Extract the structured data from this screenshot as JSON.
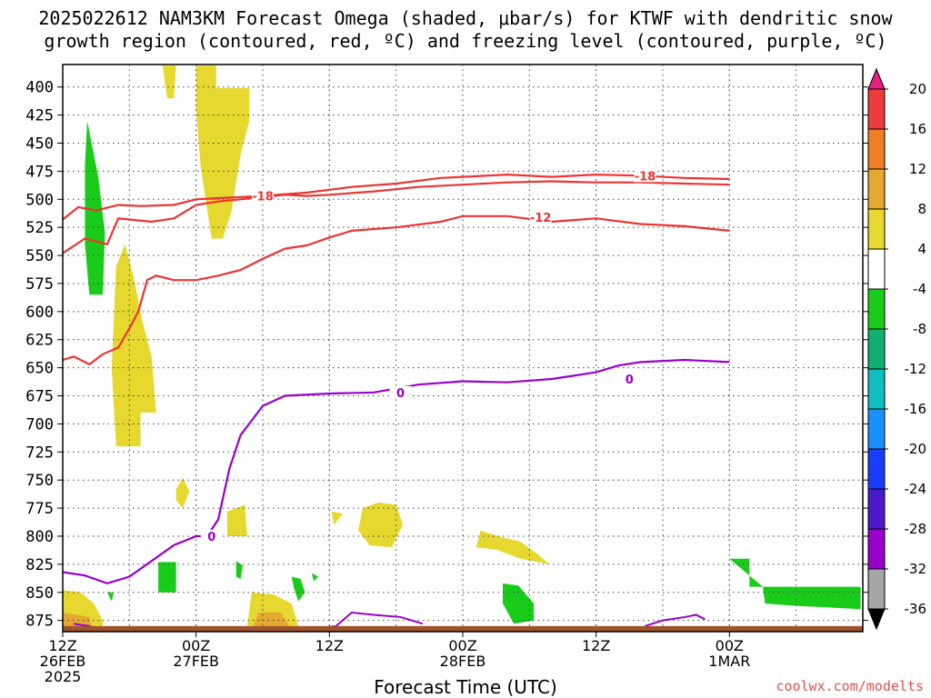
{
  "title_line1": "2025022612 NAM3KM Forecast Omega (shaded, μbar/s) for KTWF with dendritic snow",
  "title_line2": "growth region (contoured, red, ºC) and freezing level (contoured, purple, ºC)",
  "credit": "coolwx.com/modelts",
  "chart_data": {
    "type": "area",
    "xlabel": "Forecast Time (UTC)",
    "ylabel": "",
    "y_scale": "pressure (hPa), inverted",
    "ylim": [
      885,
      380
    ],
    "xlim_hours": [
      0,
      36
    ],
    "x_ticks": [
      {
        "hour": 0,
        "label": "12Z",
        "sub": "26FEB",
        "sub2": "2025"
      },
      {
        "hour": 6,
        "label": "00Z",
        "sub": "27FEB",
        "sub2": ""
      },
      {
        "hour": 12,
        "label": "12Z",
        "sub": "",
        "sub2": ""
      },
      {
        "hour": 18,
        "label": "00Z",
        "sub": "28FEB",
        "sub2": ""
      },
      {
        "hour": 24,
        "label": "12Z",
        "sub": "",
        "sub2": ""
      },
      {
        "hour": 30,
        "label": "00Z",
        "sub": "1MAR",
        "sub2": ""
      }
    ],
    "y_ticks": [
      400,
      425,
      450,
      475,
      500,
      525,
      550,
      575,
      600,
      625,
      650,
      675,
      700,
      725,
      750,
      775,
      800,
      825,
      850,
      875
    ],
    "grid": true,
    "contours": [
      {
        "label": "-18",
        "color": "#ee3333",
        "points": [
          [
            0,
            518
          ],
          [
            0.7,
            507
          ],
          [
            1.5,
            510
          ],
          [
            2.5,
            505
          ],
          [
            3.5,
            506
          ],
          [
            5,
            505
          ],
          [
            6,
            500
          ],
          [
            7,
            499
          ],
          [
            9,
            497
          ],
          [
            11,
            494
          ],
          [
            13,
            489
          ],
          [
            15,
            486
          ],
          [
            17,
            481
          ],
          [
            18,
            480
          ],
          [
            20,
            478
          ],
          [
            22,
            480
          ],
          [
            24,
            478
          ],
          [
            26,
            479
          ],
          [
            28,
            481
          ],
          [
            30,
            482
          ]
        ]
      },
      {
        "label": "-12",
        "color": "#ee3333",
        "points": [
          [
            0,
            548
          ],
          [
            1,
            535
          ],
          [
            2,
            540
          ],
          [
            2.5,
            517
          ],
          [
            3,
            518
          ],
          [
            4,
            520
          ],
          [
            5,
            517
          ],
          [
            6,
            505
          ],
          [
            7,
            502
          ],
          [
            8,
            500
          ],
          [
            9,
            498
          ],
          [
            10,
            496
          ],
          [
            11,
            497
          ],
          [
            12,
            496
          ],
          [
            14,
            493
          ],
          [
            16,
            489
          ],
          [
            18,
            487
          ],
          [
            20,
            485
          ],
          [
            22,
            484
          ],
          [
            24,
            485
          ],
          [
            26,
            485
          ],
          [
            28,
            486
          ],
          [
            30,
            487
          ]
        ]
      },
      {
        "label": "-12",
        "color": "#ee3333",
        "points": [
          [
            0,
            643
          ],
          [
            0.5,
            640
          ],
          [
            1.2,
            647
          ],
          [
            1.8,
            638
          ],
          [
            2.5,
            632
          ],
          [
            3,
            615
          ],
          [
            3.4,
            600
          ],
          [
            3.8,
            572
          ],
          [
            4.2,
            568
          ],
          [
            5,
            572
          ],
          [
            6,
            572
          ],
          [
            7,
            568
          ],
          [
            8,
            563
          ],
          [
            9,
            553
          ],
          [
            10,
            544
          ],
          [
            11,
            541
          ],
          [
            12,
            534
          ],
          [
            13,
            528
          ],
          [
            15,
            525
          ],
          [
            17,
            520
          ],
          [
            18,
            515
          ],
          [
            20,
            515
          ],
          [
            22,
            520
          ],
          [
            24,
            517
          ],
          [
            26,
            522
          ],
          [
            28,
            524
          ],
          [
            30,
            528
          ]
        ]
      },
      {
        "label": "0",
        "color": "#9900cc",
        "points": [
          [
            0,
            832
          ],
          [
            1,
            835
          ],
          [
            2,
            842
          ],
          [
            3,
            836
          ],
          [
            4,
            822
          ],
          [
            5,
            808
          ],
          [
            6,
            800
          ],
          [
            6.5,
            800
          ],
          [
            7,
            785
          ],
          [
            7.5,
            740
          ],
          [
            8,
            710
          ],
          [
            9,
            684
          ],
          [
            10,
            675
          ],
          [
            12,
            673
          ],
          [
            14,
            672
          ],
          [
            16,
            665
          ],
          [
            18,
            662
          ],
          [
            20,
            663
          ],
          [
            22,
            660
          ],
          [
            24,
            654
          ],
          [
            25,
            648
          ],
          [
            26,
            645
          ],
          [
            28,
            643
          ],
          [
            30,
            645
          ]
        ]
      }
    ],
    "shaded_regions": [
      {
        "category": "4 to 8",
        "color": "#e6d82e",
        "label_hint": "upward-positive"
      },
      {
        "category": "-8 to -4",
        "color": "#1acc1a",
        "label_hint": "negative"
      }
    ],
    "colorbar": {
      "labels": [
        "20",
        "16",
        "12",
        "8",
        "4",
        "-4",
        "-8",
        "-12",
        "-16",
        "-20",
        "-24",
        "-28",
        "-32",
        "-36"
      ],
      "colors": [
        "#e8207f",
        "#ee3b3b",
        "#ee7f22",
        "#e6a82e",
        "#e6d82e",
        "#ffffff",
        "#1acc1a",
        "#10b070",
        "#10c0c0",
        "#1a90ff",
        "#1a3cff",
        "#4b1acc",
        "#9900cc",
        "#a6a6a6",
        "#000000"
      ]
    }
  }
}
